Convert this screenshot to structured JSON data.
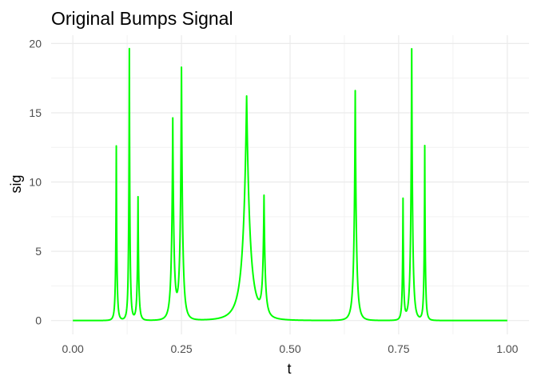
{
  "chart_data": {
    "type": "line",
    "title": "Original Bumps Signal",
    "xlabel": "t",
    "ylabel": "sig",
    "xlim": [
      -0.05,
      1.05
    ],
    "ylim": [
      -1.0,
      20.6
    ],
    "x_ticks": [
      0.0,
      0.25,
      0.5,
      0.75,
      1.0
    ],
    "x_tick_labels": [
      "0.00",
      "0.25",
      "0.50",
      "0.75",
      "1.00"
    ],
    "y_ticks": [
      0,
      5,
      10,
      15,
      20
    ],
    "y_tick_labels": [
      "0",
      "5",
      "10",
      "15",
      "20"
    ],
    "grid": true,
    "series": [
      {
        "color": "#00ff00",
        "bumps": [
          {
            "t": 0.1,
            "h": 12.6,
            "w": 0.005
          },
          {
            "t": 0.13,
            "h": 19.6,
            "w": 0.005
          },
          {
            "t": 0.15,
            "h": 8.9,
            "w": 0.006
          },
          {
            "t": 0.23,
            "h": 14.4,
            "w": 0.01
          },
          {
            "t": 0.25,
            "h": 18.1,
            "w": 0.01
          },
          {
            "t": 0.4,
            "h": 16.2,
            "w": 0.03
          },
          {
            "t": 0.44,
            "h": 8.5,
            "w": 0.01
          },
          {
            "t": 0.65,
            "h": 16.6,
            "w": 0.01
          },
          {
            "t": 0.76,
            "h": 8.7,
            "w": 0.005
          },
          {
            "t": 0.78,
            "h": 19.6,
            "w": 0.008
          },
          {
            "t": 0.81,
            "h": 12.6,
            "w": 0.005
          }
        ]
      }
    ]
  }
}
